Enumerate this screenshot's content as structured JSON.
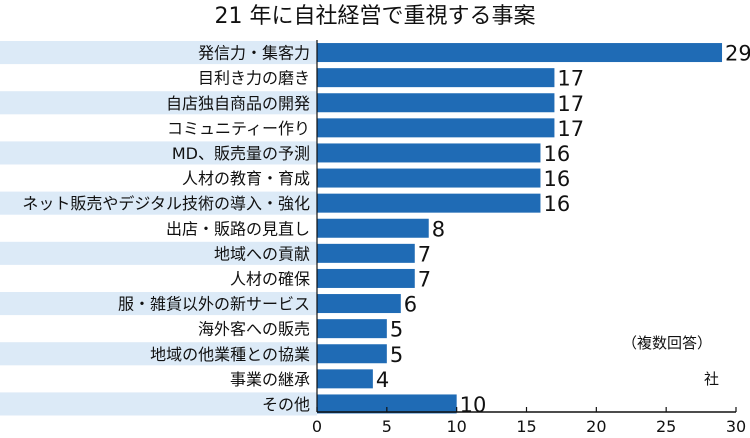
{
  "chart_data": {
    "type": "bar",
    "orientation": "horizontal",
    "title": "21 年に自社経営で重視する事案",
    "categories": [
      "発信力・集客力",
      "目利き力の磨き",
      "自店独自商品の開発",
      "コミュニティー作り",
      "MD、販売量の予測",
      "人材の教育・育成",
      "ネット販売やデジタル技術の導入・強化",
      "出店・販路の見直し",
      "地域への貢献",
      "人材の確保",
      "服・雑貨以外の新サービス",
      "海外客への販売",
      "地域の他業種との協業",
      "事業の継承",
      "その他"
    ],
    "values": [
      29,
      17,
      17,
      17,
      16,
      16,
      16,
      8,
      7,
      7,
      6,
      5,
      5,
      4,
      10
    ],
    "xlim": [
      0,
      30
    ],
    "xticks": [
      0,
      5,
      10,
      15,
      20,
      25,
      30
    ],
    "bar_color": "#1f6bb5",
    "stripe_color": "#dceaf7",
    "note": "（複数回答）",
    "source": "社"
  }
}
